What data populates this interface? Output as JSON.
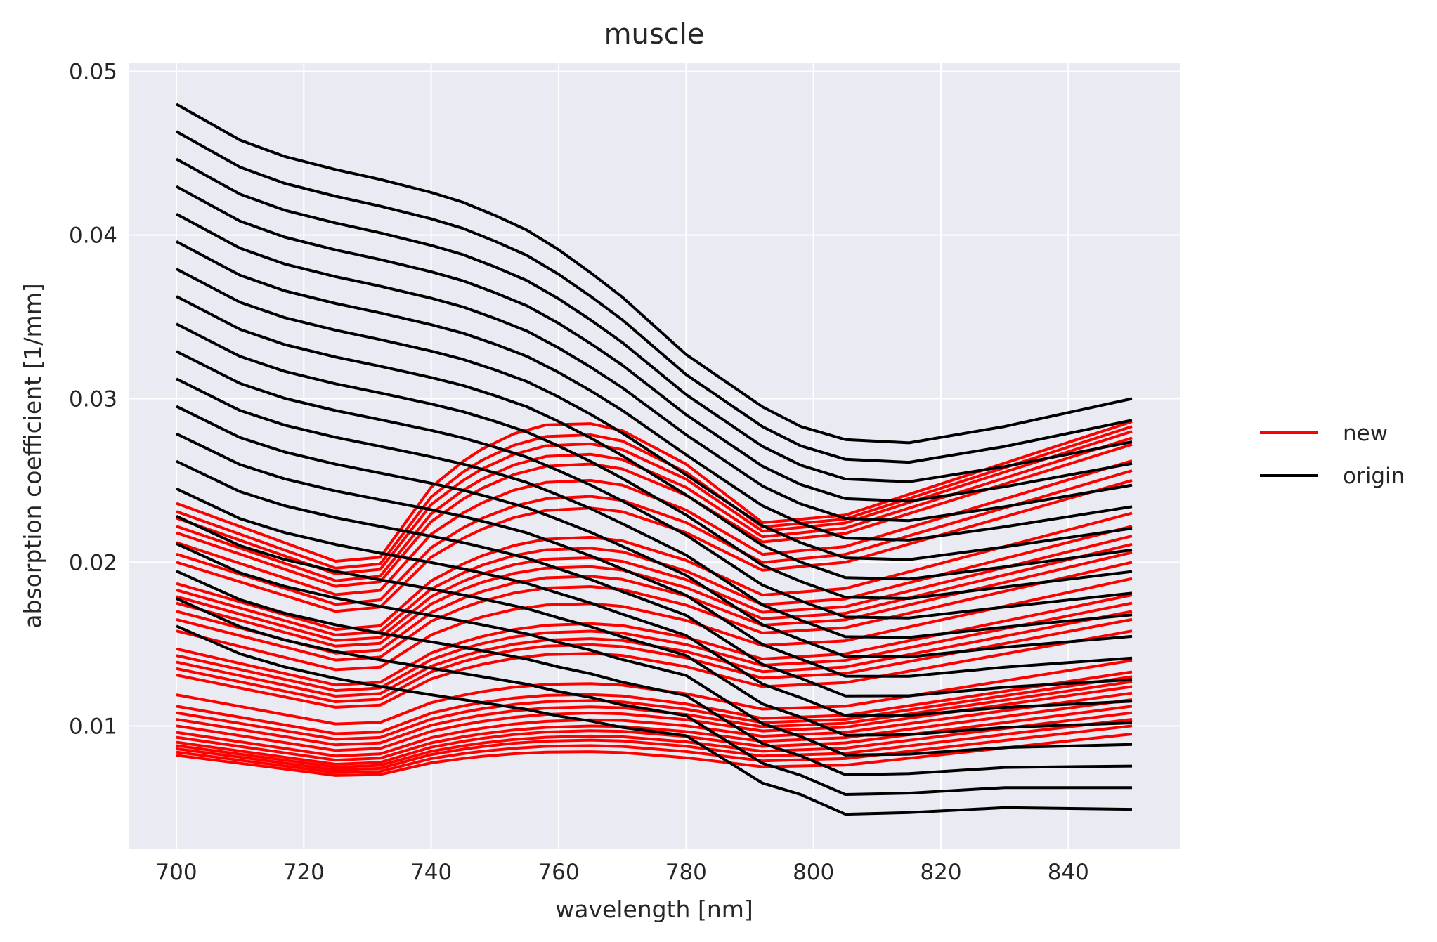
{
  "chart_data": {
    "type": "line",
    "title": "muscle",
    "xlabel": "wavelength [nm]",
    "ylabel": "absorption coefficient [1/mm]",
    "xlim": [
      692.5,
      857.5
    ],
    "ylim": [
      0.0025,
      0.0505
    ],
    "xticks": [
      700,
      720,
      740,
      760,
      780,
      800,
      820,
      840
    ],
    "xtick_labels": [
      "700",
      "720",
      "740",
      "760",
      "780",
      "800",
      "820",
      "840"
    ],
    "yticks": [
      0.01,
      0.02,
      0.03,
      0.04,
      0.05
    ],
    "ytick_labels": [
      "0.01",
      "0.02",
      "0.03",
      "0.04",
      "0.05"
    ],
    "grid": true,
    "background": "#eaeaf2",
    "legend": {
      "placement": "right-outside",
      "entries": [
        {
          "label": "new",
          "color": "#ff0000"
        },
        {
          "label": "origin",
          "color": "#000000"
        }
      ]
    },
    "series": [
      {
        "label": "origin",
        "color": "#000000",
        "x": [
          700,
          710,
          717,
          725,
          732,
          740,
          745,
          750,
          755,
          760,
          765,
          770,
          780,
          792,
          798,
          805,
          815,
          830,
          850
        ],
        "top": [
          0.048,
          0.0458,
          0.0448,
          0.044,
          0.0434,
          0.0426,
          0.042,
          0.0412,
          0.0403,
          0.0391,
          0.0377,
          0.0362,
          0.0327,
          0.0295,
          0.0283,
          0.0275,
          0.0273,
          0.0283,
          0.03
        ],
        "bottom": [
          0.0161,
          0.0144,
          0.0136,
          0.0129,
          0.0124,
          0.0119,
          0.0116,
          0.0113,
          0.011,
          0.0106,
          0.0103,
          0.0099,
          0.0094,
          0.0065,
          0.0058,
          0.0046,
          0.0047,
          0.005,
          0.0049
        ],
        "count": 20
      },
      {
        "label": "new",
        "color": "#ff0000",
        "x": [
          700,
          710,
          717,
          725,
          732,
          740,
          745,
          748,
          753,
          758,
          765,
          770,
          780,
          792,
          798,
          805,
          815,
          830,
          850
        ],
        "curves": [
          {
            "start": 0.0236,
            "bump": 0.008,
            "end": 0.0286
          },
          {
            "start": 0.0231,
            "bump": 0.0076,
            "end": 0.0283
          },
          {
            "start": 0.0227,
            "bump": 0.0073,
            "end": 0.028
          },
          {
            "start": 0.0222,
            "bump": 0.007,
            "end": 0.0276
          },
          {
            "start": 0.0218,
            "bump": 0.0067,
            "end": 0.0272
          },
          {
            "start": 0.0212,
            "bump": 0.0063,
            "end": 0.0262
          },
          {
            "start": 0.0205,
            "bump": 0.0058,
            "end": 0.0256
          },
          {
            "start": 0.02,
            "bump": 0.0055,
            "end": 0.025
          },
          {
            "start": 0.0187,
            "bump": 0.005,
            "end": 0.023
          },
          {
            "start": 0.0183,
            "bump": 0.0048,
            "end": 0.0222
          },
          {
            "start": 0.0179,
            "bump": 0.0046,
            "end": 0.0216
          },
          {
            "start": 0.0175,
            "bump": 0.0044,
            "end": 0.0211
          },
          {
            "start": 0.017,
            "bump": 0.0042,
            "end": 0.0206
          },
          {
            "start": 0.0165,
            "bump": 0.004,
            "end": 0.02
          },
          {
            "start": 0.0158,
            "bump": 0.0036,
            "end": 0.019
          },
          {
            "start": 0.0147,
            "bump": 0.0032,
            "end": 0.018
          },
          {
            "start": 0.0143,
            "bump": 0.0031,
            "end": 0.0175
          },
          {
            "start": 0.0139,
            "bump": 0.003,
            "end": 0.017
          },
          {
            "start": 0.0135,
            "bump": 0.003,
            "end": 0.0165
          },
          {
            "start": 0.0131,
            "bump": 0.0029,
            "end": 0.0158
          },
          {
            "start": 0.0119,
            "bump": 0.0022,
            "end": 0.014
          },
          {
            "start": 0.0112,
            "bump": 0.0021,
            "end": 0.0133
          },
          {
            "start": 0.0108,
            "bump": 0.002,
            "end": 0.013
          },
          {
            "start": 0.0104,
            "bump": 0.0019,
            "end": 0.0127
          },
          {
            "start": 0.01,
            "bump": 0.0018,
            "end": 0.0124
          },
          {
            "start": 0.0096,
            "bump": 0.0017,
            "end": 0.012
          },
          {
            "start": 0.0093,
            "bump": 0.0016,
            "end": 0.0116
          },
          {
            "start": 0.009,
            "bump": 0.0016,
            "end": 0.0112
          },
          {
            "start": 0.0088,
            "bump": 0.0015,
            "end": 0.0108
          },
          {
            "start": 0.0086,
            "bump": 0.0015,
            "end": 0.0104
          },
          {
            "start": 0.0084,
            "bump": 0.0014,
            "end": 0.01
          },
          {
            "start": 0.0082,
            "bump": 0.0013,
            "end": 0.0095
          }
        ]
      }
    ]
  }
}
